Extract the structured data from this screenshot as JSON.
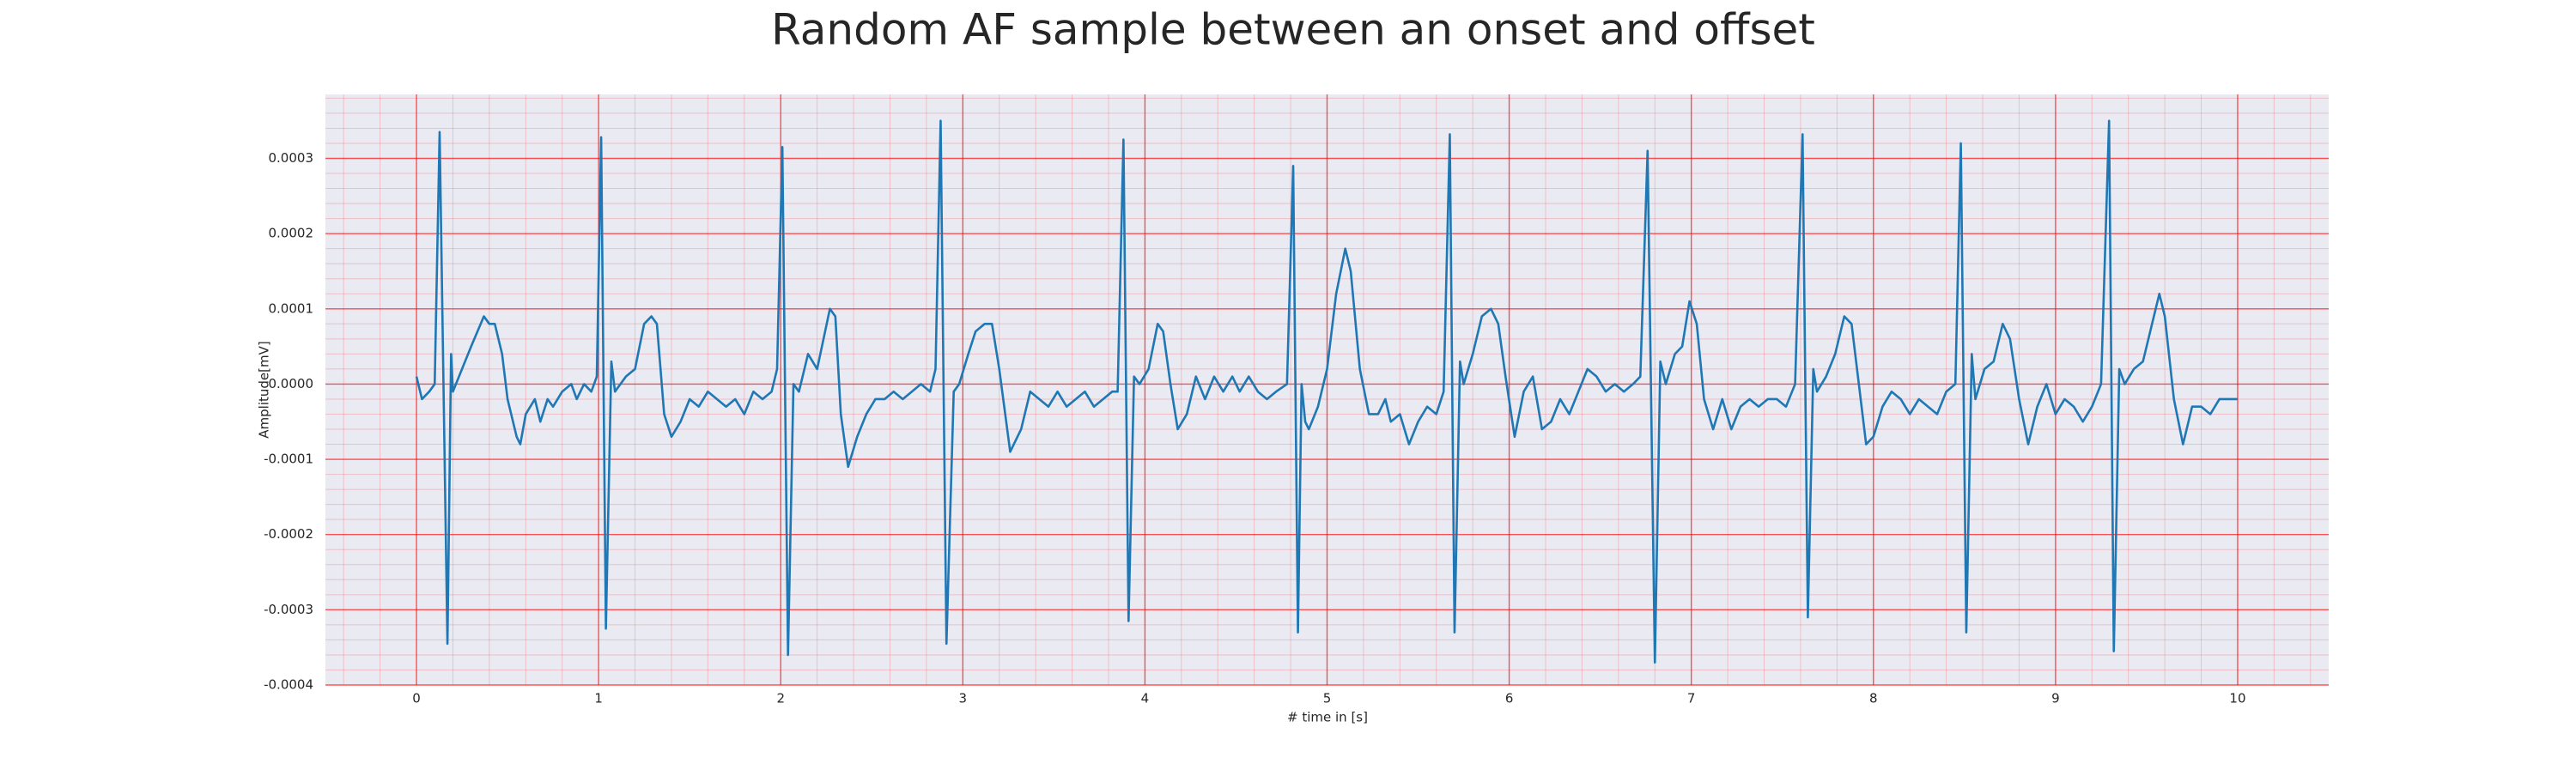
{
  "chart_data": {
    "type": "line",
    "title": "Random AF sample between an onset and offset",
    "xlabel": "# time in [s]",
    "ylabel": "Amplitude[mV]",
    "color": "#1f77b4",
    "grid": true,
    "minor_grid": true,
    "grid_color": "#ff0000",
    "xlim": [
      -0.5,
      10.5
    ],
    "ylim": [
      -0.0004,
      0.000385
    ],
    "xticks": [
      0,
      1,
      2,
      3,
      4,
      5,
      6,
      7,
      8,
      9,
      10
    ],
    "yticks": [
      -0.0004,
      -0.0003,
      -0.0002,
      -0.0001,
      {
        "value": 0,
        "label": "0.0000"
      },
      0.0001,
      0.0002,
      0.0003
    ],
    "x": [
      0,
      0.03,
      0.07,
      0.1,
      0.127,
      0.17,
      0.19,
      0.2,
      0.25,
      0.3,
      0.37,
      0.4,
      0.43,
      0.47,
      0.5,
      0.55,
      0.57,
      0.6,
      0.65,
      0.68,
      0.72,
      0.75,
      0.8,
      0.85,
      0.88,
      0.92,
      0.96,
      0.99,
      1.014,
      1.04,
      1.07,
      1.09,
      1.15,
      1.2,
      1.25,
      1.29,
      1.32,
      1.36,
      1.4,
      1.45,
      1.5,
      1.55,
      1.6,
      1.65,
      1.7,
      1.75,
      1.8,
      1.85,
      1.9,
      1.95,
      1.98,
      2.009,
      2.04,
      2.07,
      2.1,
      2.15,
      2.2,
      2.27,
      2.3,
      2.33,
      2.37,
      2.42,
      2.47,
      2.52,
      2.57,
      2.62,
      2.67,
      2.72,
      2.77,
      2.82,
      2.85,
      2.878,
      2.91,
      2.95,
      2.98,
      3.03,
      3.07,
      3.12,
      3.16,
      3.2,
      3.26,
      3.32,
      3.37,
      3.42,
      3.47,
      3.52,
      3.57,
      3.62,
      3.67,
      3.72,
      3.77,
      3.82,
      3.85,
      3.882,
      3.91,
      3.94,
      3.97,
      4.02,
      4.07,
      4.1,
      4.14,
      4.18,
      4.23,
      4.28,
      4.33,
      4.38,
      4.43,
      4.48,
      4.52,
      4.57,
      4.62,
      4.67,
      4.72,
      4.78,
      4.814,
      4.84,
      4.86,
      4.88,
      4.9,
      4.95,
      5.0,
      5.05,
      5.1,
      5.13,
      5.18,
      5.23,
      5.28,
      5.32,
      5.35,
      5.4,
      5.45,
      5.5,
      5.55,
      5.6,
      5.64,
      5.674,
      5.7,
      5.73,
      5.75,
      5.8,
      5.85,
      5.9,
      5.94,
      5.98,
      6.03,
      6.08,
      6.13,
      6.18,
      6.23,
      6.28,
      6.33,
      6.38,
      6.43,
      6.48,
      6.53,
      6.58,
      6.63,
      6.68,
      6.72,
      6.76,
      6.8,
      6.83,
      6.86,
      6.91,
      6.95,
      6.99,
      7.03,
      7.07,
      7.12,
      7.17,
      7.22,
      7.27,
      7.32,
      7.37,
      7.42,
      7.47,
      7.52,
      7.57,
      7.611,
      7.64,
      7.67,
      7.69,
      7.74,
      7.79,
      7.84,
      7.88,
      7.92,
      7.96,
      8.0,
      8.05,
      8.1,
      8.15,
      8.2,
      8.25,
      8.3,
      8.35,
      8.4,
      8.45,
      8.48,
      8.51,
      8.54,
      8.56,
      8.61,
      8.66,
      8.71,
      8.75,
      8.8,
      8.85,
      8.9,
      8.95,
      9.0,
      9.05,
      9.1,
      9.15,
      9.2,
      9.25,
      9.294,
      9.32,
      9.35,
      9.38,
      9.43,
      9.48,
      9.53,
      9.57,
      9.6,
      9.65,
      9.7,
      9.75,
      9.8,
      9.85,
      9.9,
      9.95,
      10.0
    ],
    "values": [
      1e-05,
      -2e-05,
      -1e-05,
      0,
      0.000335,
      -0.000345,
      4e-05,
      -1e-05,
      2e-05,
      5e-05,
      9e-05,
      8e-05,
      8e-05,
      4e-05,
      -2e-05,
      -7e-05,
      -8e-05,
      -4e-05,
      -2e-05,
      -5e-05,
      -2e-05,
      -3e-05,
      -1e-05,
      0,
      -2e-05,
      0,
      -1e-05,
      1e-05,
      0.000328,
      -0.000325,
      3e-05,
      -1e-05,
      1e-05,
      2e-05,
      8e-05,
      9e-05,
      8e-05,
      -4e-05,
      -7e-05,
      -5e-05,
      -2e-05,
      -3e-05,
      -1e-05,
      -2e-05,
      -3e-05,
      -2e-05,
      -4e-05,
      -1e-05,
      -2e-05,
      -1e-05,
      2e-05,
      0.000315,
      -0.00036,
      0,
      -1e-05,
      4e-05,
      2e-05,
      0.0001,
      9e-05,
      -4e-05,
      -0.00011,
      -7e-05,
      -4e-05,
      -2e-05,
      -2e-05,
      -1e-05,
      -2e-05,
      -1e-05,
      0,
      -1e-05,
      2e-05,
      0.00035,
      -0.000345,
      -1e-05,
      0,
      4e-05,
      7e-05,
      8e-05,
      8e-05,
      2e-05,
      -9e-05,
      -6e-05,
      -1e-05,
      -2e-05,
      -3e-05,
      -1e-05,
      -3e-05,
      -2e-05,
      -1e-05,
      -3e-05,
      -2e-05,
      -1e-05,
      -1e-05,
      0.000325,
      -0.000315,
      1e-05,
      0,
      2e-05,
      8e-05,
      7e-05,
      0,
      -6e-05,
      -4e-05,
      1e-05,
      -2e-05,
      1e-05,
      -1e-05,
      1e-05,
      -1e-05,
      1e-05,
      -1e-05,
      -2e-05,
      -1e-05,
      0,
      0.00029,
      -0.00033,
      0,
      -5e-05,
      -6e-05,
      -3e-05,
      2e-05,
      0.00012,
      0.00018,
      0.00015,
      2e-05,
      -4e-05,
      -4e-05,
      -2e-05,
      -5e-05,
      -4e-05,
      -8e-05,
      -5e-05,
      -3e-05,
      -4e-05,
      -1e-05,
      0.000332,
      -0.00033,
      3e-05,
      0,
      4e-05,
      9e-05,
      0.0001,
      8e-05,
      1e-05,
      -7e-05,
      -1e-05,
      1e-05,
      -6e-05,
      -5e-05,
      -2e-05,
      -4e-05,
      -1e-05,
      2e-05,
      1e-05,
      -1e-05,
      0,
      -1e-05,
      0,
      1e-05,
      0.00031,
      -0.00037,
      3e-05,
      0,
      4e-05,
      5e-05,
      0.00011,
      8e-05,
      -2e-05,
      -6e-05,
      -2e-05,
      -6e-05,
      -3e-05,
      -2e-05,
      -3e-05,
      -2e-05,
      -2e-05,
      -3e-05,
      0,
      0.000332,
      -0.00031,
      2e-05,
      -1e-05,
      1e-05,
      4e-05,
      9e-05,
      8e-05,
      0,
      -8e-05,
      -7e-05,
      -3e-05,
      -1e-05,
      -2e-05,
      -4e-05,
      -2e-05,
      -3e-05,
      -4e-05,
      -1e-05,
      0,
      0.00032,
      -0.00033,
      4e-05,
      -2e-05,
      2e-05,
      3e-05,
      8e-05,
      6e-05,
      -2e-05,
      -8e-05,
      -3e-05,
      0,
      -4e-05,
      -2e-05,
      -3e-05,
      -5e-05,
      -3e-05,
      0,
      0.00035,
      -0.000355,
      2e-05,
      0,
      2e-05,
      3e-05,
      8e-05,
      0.00012,
      9e-05,
      -2e-05,
      -8e-05,
      -3e-05,
      -3e-05,
      -4e-05,
      -2e-05,
      -2e-05,
      -2e-05
    ]
  }
}
